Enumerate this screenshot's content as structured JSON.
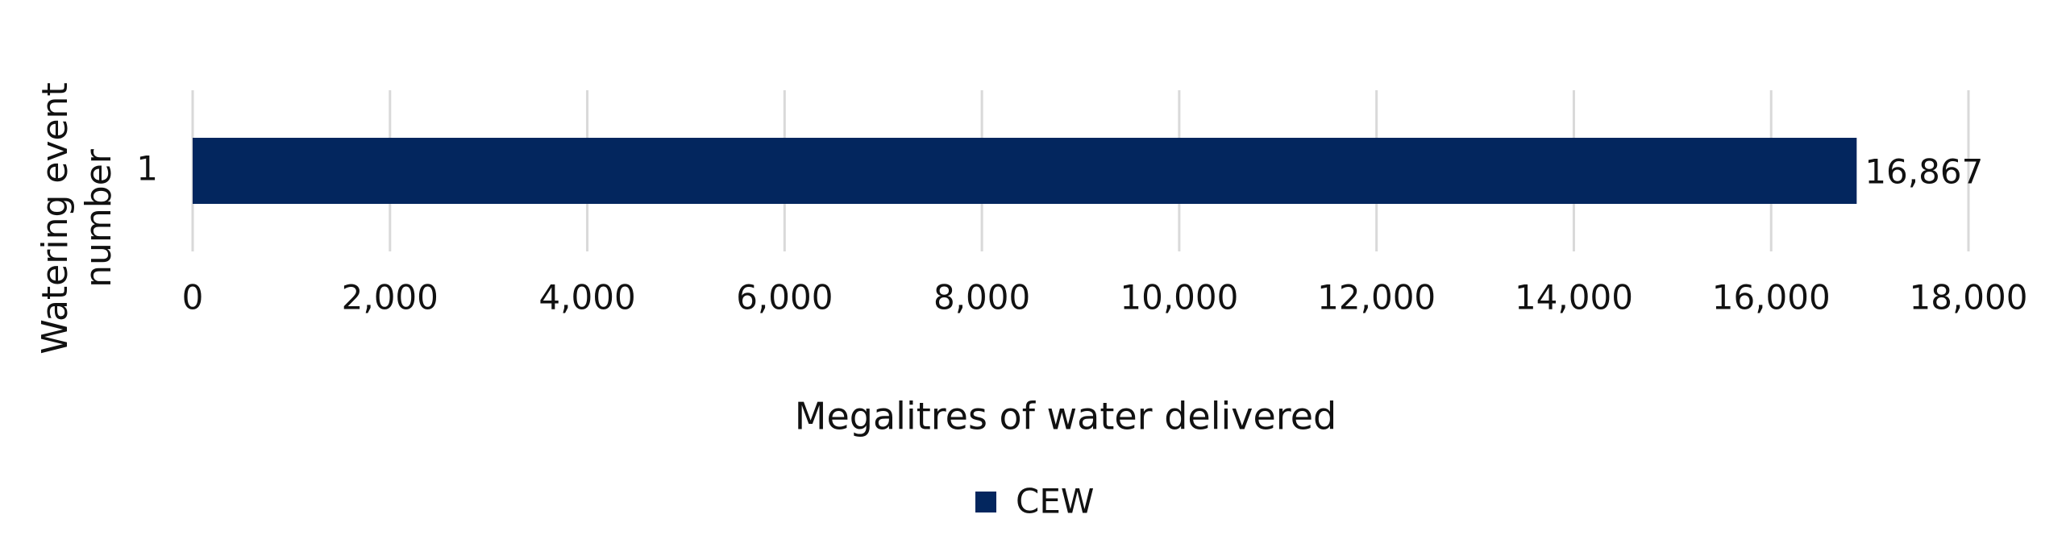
{
  "chart_data": {
    "type": "hbar",
    "y_label": "Watering event number",
    "x_label": "Megalitres of water delivered",
    "categories": [
      "1"
    ],
    "series": [
      {
        "name": "CEW",
        "color": "#03265e",
        "values": [
          16867
        ],
        "value_labels": [
          "16,867"
        ]
      }
    ],
    "xlim": [
      0,
      18000
    ],
    "xticks": [
      0,
      {
        "value": 2000,
        "label": "2,000"
      },
      {
        "value": 4000,
        "label": "4,000"
      },
      {
        "value": 6000,
        "label": "6,000"
      },
      {
        "value": 8000,
        "label": "8,000"
      },
      {
        "value": 10000,
        "label": "10,000"
      },
      {
        "value": 12000,
        "label": "12,000"
      },
      {
        "value": 14000,
        "label": "14,000"
      },
      {
        "value": 16000,
        "label": "16,000"
      },
      {
        "value": 18000,
        "label": "18,000"
      }
    ],
    "grid": true,
    "legend": "bottom"
  }
}
